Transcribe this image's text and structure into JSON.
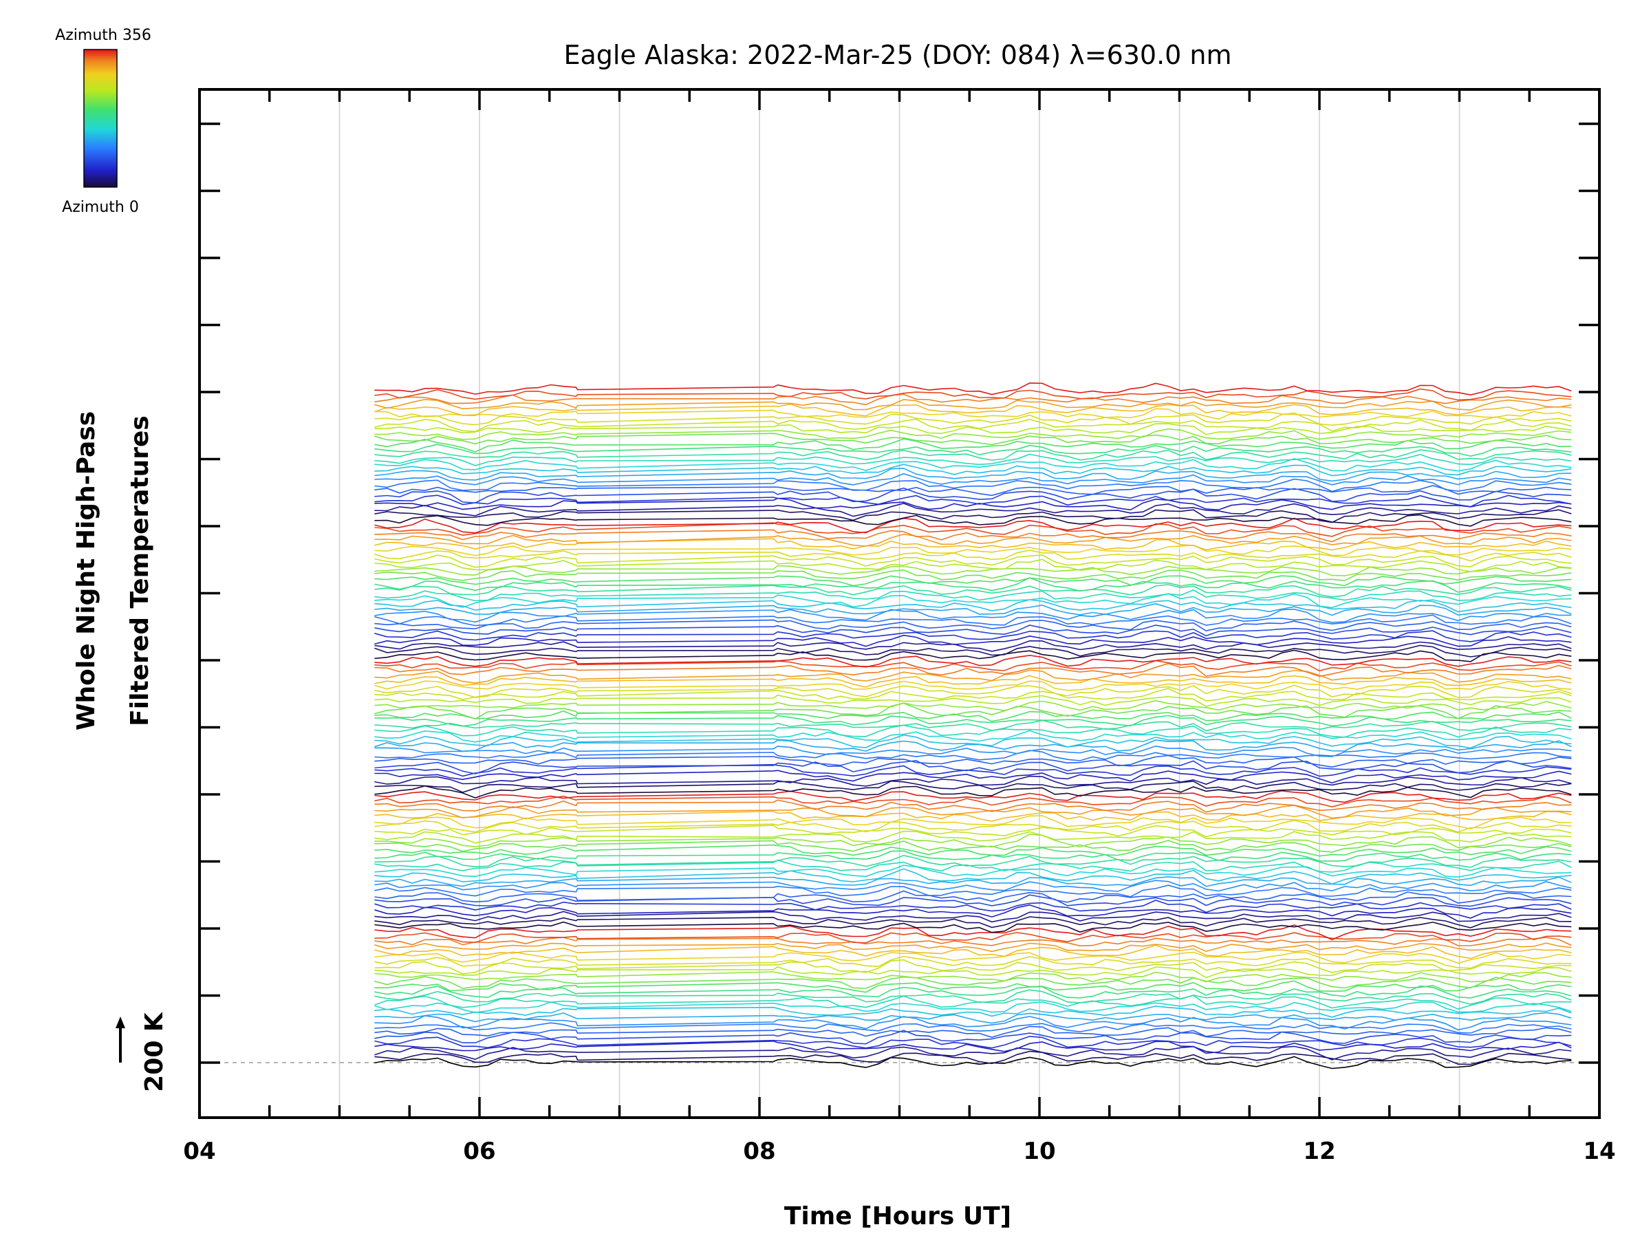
{
  "chart_data": {
    "type": "line",
    "title": "Eagle Alaska: 2022-Mar-25 (DOY: 084) λ=630.0 nm",
    "xlabel": "Time [Hours UT]",
    "ylabel_line1": "Whole Night High-Pass",
    "ylabel_line2": "Filtered Temperatures",
    "xlim": [
      4,
      14
    ],
    "x_tick_labels": [
      "04",
      "06",
      "08",
      "10",
      "12",
      "14"
    ],
    "x_major_ticks": [
      4,
      6,
      8,
      10,
      12,
      14
    ],
    "x_gridlines": [
      5,
      6,
      7,
      8,
      9,
      10,
      11,
      12,
      13
    ],
    "scale_bar_label": "200 K",
    "baseline_dashed": true,
    "colorbar": {
      "top_label": "Azimuth 356",
      "bottom_label": "Azimuth 0",
      "azimuth_min": 0,
      "azimuth_max": 356,
      "colormap": "rainbow"
    },
    "traces": {
      "count": 135,
      "t_start": 5.25,
      "t_end": 13.8,
      "azimuth_step": 2.667,
      "offset_per_trace_K": 23.4,
      "data_gap_hours": [
        6.7,
        8.1
      ]
    }
  }
}
